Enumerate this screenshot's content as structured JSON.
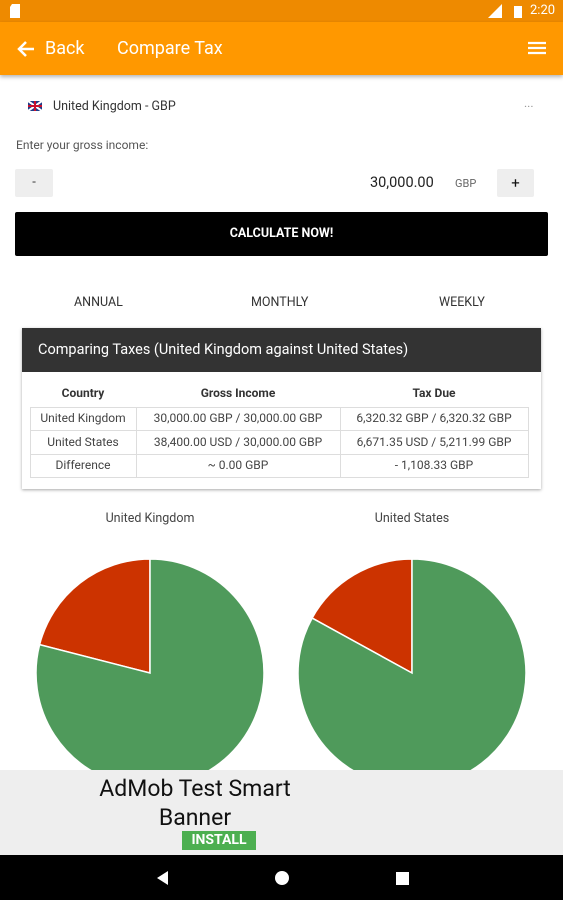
{
  "status_bar": {
    "time": "2:20"
  },
  "app_bar": {
    "back": "Back",
    "title": "Compare Tax"
  },
  "form": {
    "country": "United Kingdom - GBP",
    "country_menu": "...",
    "income_label": "Enter your gross income:",
    "minus": "-",
    "amount": "30,000.00",
    "currency": "GBP",
    "plus": "+",
    "button": "CALCULATE NOW!"
  },
  "tabs": [
    "ANNUAL",
    "MONTHLY",
    "WEEKLY"
  ],
  "table": {
    "title": "Comparing Taxes (United Kingdom against United States)",
    "headers": [
      "Country",
      "Gross Income",
      "Tax Due"
    ],
    "rows": [
      [
        "United Kingdom",
        "30,000.00 GBP / 30,000.00 GBP",
        "6,320.32 GBP / 6,320.32 GBP"
      ],
      [
        "United States",
        "38,400.00 USD / 30,000.00 GBP",
        "6,671.35 USD / 5,211.99 GBP"
      ],
      [
        "Difference",
        "~ 0.00 GBP",
        "- 1,108.33 GBP"
      ]
    ]
  },
  "charts": [
    {
      "type": "pie",
      "title": "United Kingdom",
      "values": [
        21,
        79
      ],
      "colors": [
        "#cc3300",
        "#4f9a5b"
      ]
    },
    {
      "type": "pie",
      "title": "United States",
      "values": [
        17,
        83
      ],
      "colors": [
        "#cc3300",
        "#4f9a5b"
      ]
    }
  ],
  "ad": {
    "title": "AdMob Test Smart Banner",
    "install": "INSTALL"
  }
}
